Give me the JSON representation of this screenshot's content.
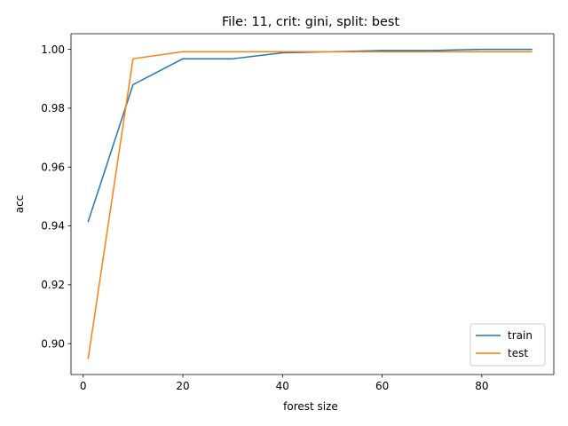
{
  "chart_data": {
    "type": "line",
    "title": "File: 11, crit: gini, split: best",
    "xlabel": "forest size",
    "ylabel": "acc",
    "xlim": [
      -2.45,
      94.45
    ],
    "ylim": [
      0.8895,
      1.0053
    ],
    "x_ticks": [
      0,
      20,
      40,
      60,
      80
    ],
    "x_tick_labels": [
      "0",
      "20",
      "40",
      "60",
      "80"
    ],
    "y_ticks": [
      0.9,
      0.92,
      0.94,
      0.96,
      0.98,
      1.0
    ],
    "y_tick_labels": [
      "0.90",
      "0.92",
      "0.94",
      "0.96",
      "0.98",
      "1.00"
    ],
    "grid": false,
    "legend_position": "lower-right",
    "x": [
      1,
      10,
      20,
      30,
      40,
      50,
      60,
      70,
      80,
      90
    ],
    "series": [
      {
        "name": "train",
        "color": "#1f77b4",
        "values": [
          0.9415,
          0.988,
          0.9968,
          0.9968,
          0.9988,
          0.9992,
          0.9996,
          0.9996,
          1.0,
          1.0
        ]
      },
      {
        "name": "test",
        "color": "#ff7f0e",
        "values": [
          0.895,
          0.9968,
          0.9992,
          0.9992,
          0.9992,
          0.9992,
          0.9992,
          0.9992,
          0.9992,
          0.9992
        ]
      }
    ]
  }
}
